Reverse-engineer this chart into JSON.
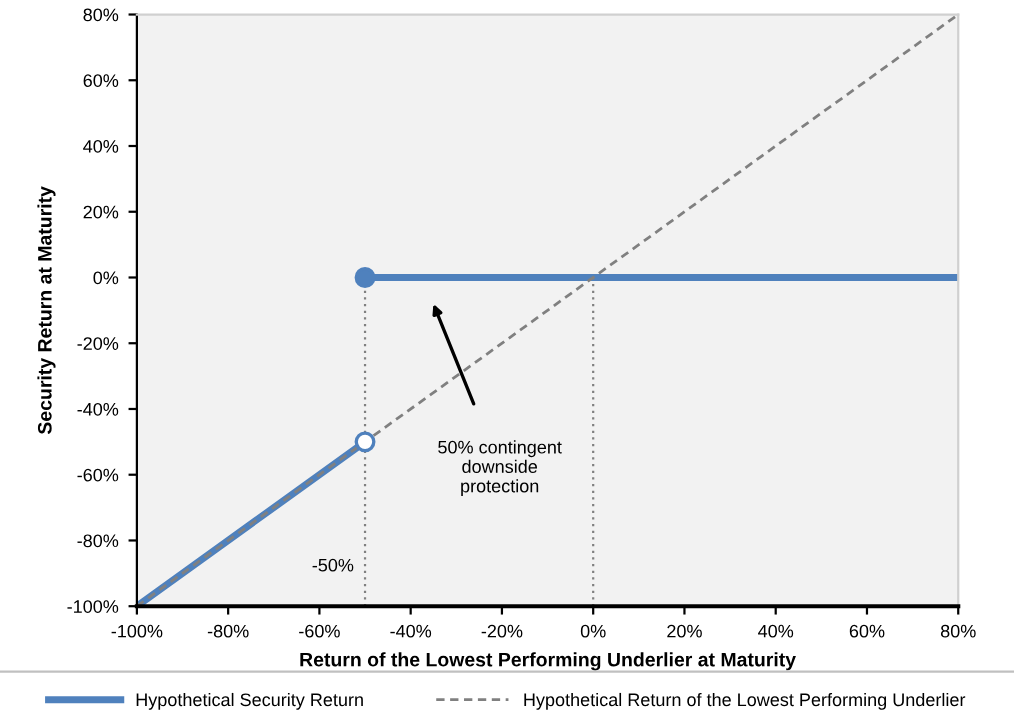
{
  "chart_data": {
    "type": "line",
    "xlabel": "Return of the Lowest Performing Underlier at Maturity",
    "ylabel": "Security Return at Maturity",
    "series": [
      {
        "name": "Hypothetical Security Return",
        "color": "#4f81bd",
        "x": [
          -100,
          -50,
          null,
          -50,
          80
        ],
        "values": [
          -100,
          -50,
          null,
          0,
          0
        ],
        "line_style": "solid"
      },
      {
        "name": "Hypothetical Return of the Lowest Performing Underlier",
        "color": "#808080",
        "x": [
          -100,
          80
        ],
        "values": [
          -100,
          80
        ],
        "line_style": "dashed"
      },
      {
        "color": "#808080",
        "x": [
          -50,
          -50
        ],
        "values": [
          -100,
          0
        ],
        "line_style": "dotted"
      },
      {
        "color": "#808080",
        "x": [
          0,
          0
        ],
        "values": [
          -100,
          0
        ],
        "line_style": "dotted"
      },
      {
        "type": "scatter",
        "color": "#4f81bd",
        "x": [
          -50,
          -50
        ],
        "values": [
          -50,
          0
        ],
        "colors": [
          "#ffffff",
          "#4f81bd"
        ]
      }
    ],
    "annotations": [
      "50% contingent\ndownside\nprotection",
      {
        "text": "-50%",
        "x": -50,
        "y": -88
      }
    ],
    "xlim": [
      -100,
      80
    ],
    "ylim": [
      -100,
      80
    ],
    "xticks": [
      {
        "value": -100,
        "label": "-100%"
      },
      {
        "value": -80,
        "label": "-80%"
      },
      {
        "value": -60,
        "label": "-60%"
      },
      {
        "value": -40,
        "label": "-40%"
      },
      {
        "value": -20,
        "label": "-20%"
      },
      {
        "value": 0,
        "label": "0%"
      },
      {
        "value": 20,
        "label": "20%"
      },
      {
        "value": 40,
        "label": "40%"
      },
      {
        "value": 60,
        "label": "60%"
      },
      {
        "value": 80,
        "label": "80%"
      }
    ],
    "yticks": [
      {
        "value": -100,
        "label": "-100%"
      },
      {
        "value": -80,
        "label": "-80%"
      },
      {
        "value": -60,
        "label": "-60%"
      },
      {
        "value": -40,
        "label": "-40%"
      },
      {
        "value": -20,
        "label": "-20%"
      },
      {
        "value": 0,
        "label": "0%"
      },
      {
        "value": 20,
        "label": "20%"
      },
      {
        "value": 40,
        "label": "40%"
      },
      {
        "value": 60,
        "label": "60%"
      },
      {
        "value": 80,
        "label": "80%"
      }
    ],
    "grid": false,
    "legend": "bottom"
  }
}
